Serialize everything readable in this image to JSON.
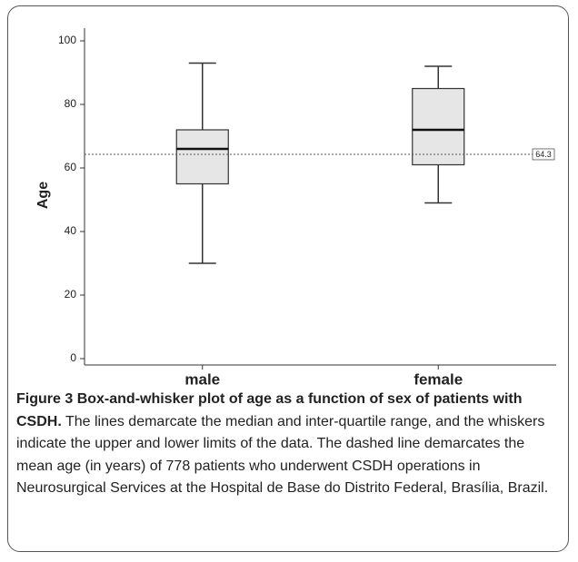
{
  "chart_data": {
    "type": "box",
    "y_label": "Age",
    "categories": [
      "male",
      "female"
    ],
    "min": [
      30,
      49
    ],
    "q1": [
      55,
      61
    ],
    "median": [
      66,
      72
    ],
    "q3": [
      72,
      85
    ],
    "max": [
      93,
      92
    ],
    "box_color": "#e6e6e6",
    "line_color": "#333333",
    "reference_line": 64.3,
    "ylim": [
      -2,
      104
    ],
    "yticks": [
      0,
      20,
      40,
      60,
      80,
      100
    ]
  },
  "caption": {
    "label": "Figure 3",
    "title": "Box-and-whisker plot of age as a function of sex of patients with CSDH.",
    "text": "The lines demarcate the median and inter-quartile range, and the whiskers indicate the upper and lower limits of the data. The dashed line demarcates the mean age (in years) of 778 patients who underwent CSDH operations in Neurosurgical Services at the Hospital de Base do Distrito Federal, Brasília, Brazil."
  }
}
